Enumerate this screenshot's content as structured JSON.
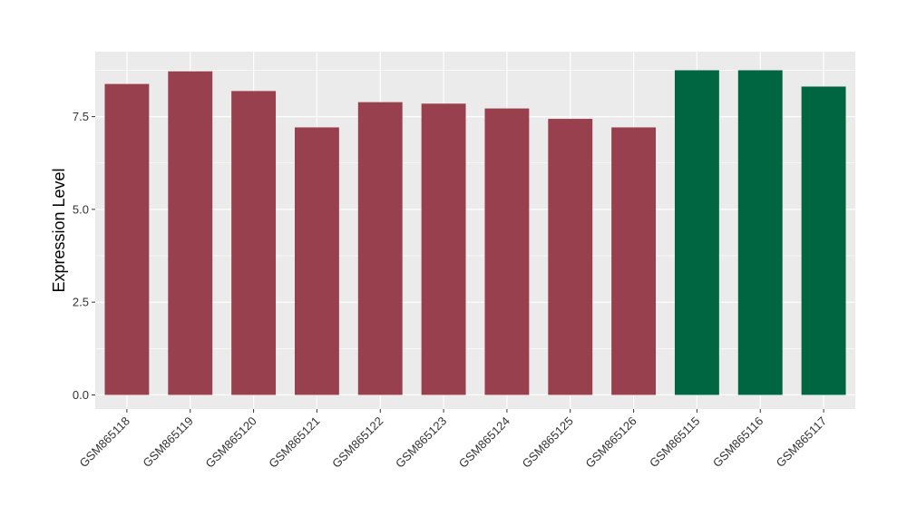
{
  "chart_data": {
    "type": "bar",
    "title": "",
    "xlabel": "",
    "ylabel": "Expression Level",
    "ylim": [
      -0.38,
      9.25
    ],
    "yticks": [
      0.0,
      2.5,
      5.0,
      7.5
    ],
    "ytick_labels": [
      "0.0",
      "2.5",
      "5.0",
      "7.5"
    ],
    "grid": true,
    "legend": "none",
    "categories": [
      "GSM865118",
      "GSM865119",
      "GSM865120",
      "GSM865121",
      "GSM865122",
      "GSM865123",
      "GSM865124",
      "GSM865125",
      "GSM865126",
      "GSM865115",
      "GSM865116",
      "GSM865117"
    ],
    "values": [
      8.38,
      8.72,
      8.19,
      7.21,
      7.89,
      7.85,
      7.72,
      7.44,
      7.21,
      8.75,
      8.75,
      8.31
    ],
    "colors": [
      "#99404f",
      "#99404f",
      "#99404f",
      "#99404f",
      "#99404f",
      "#99404f",
      "#99404f",
      "#99404f",
      "#99404f",
      "#006642",
      "#006642",
      "#006642"
    ],
    "panel_background": "#ebebeb",
    "gridline_color": "#ffffff"
  }
}
